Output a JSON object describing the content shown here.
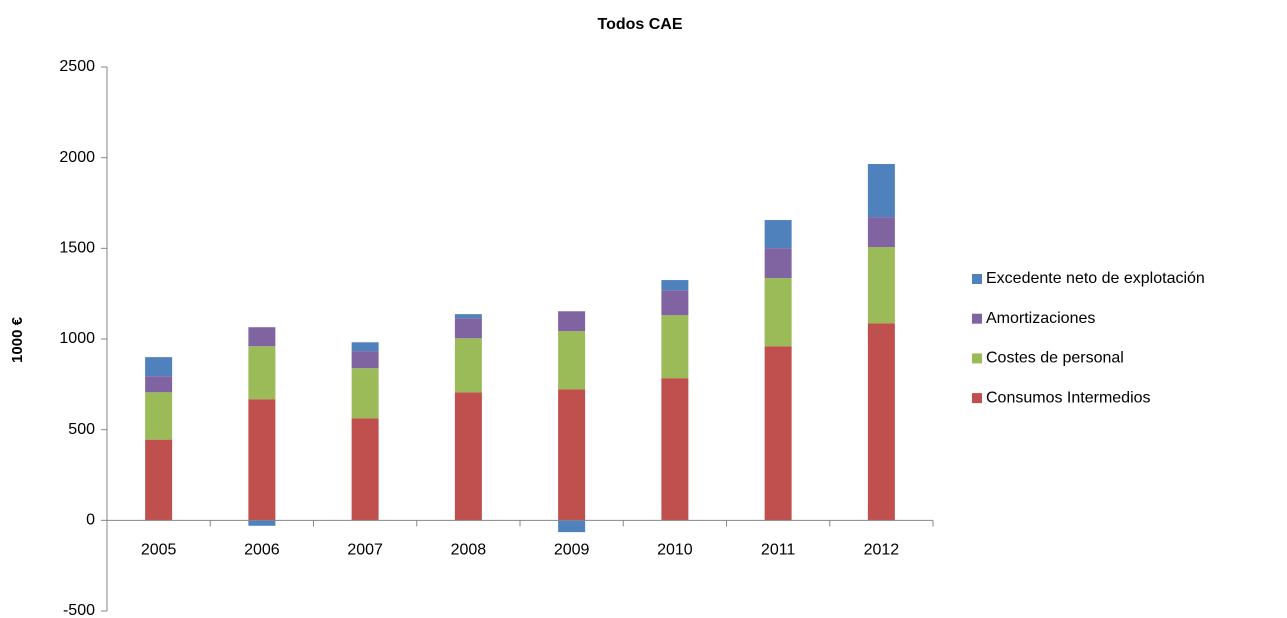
{
  "chart_data": {
    "type": "stacked_bar",
    "title": "Todos CAE",
    "y_label": "1000 €",
    "categories": [
      "2005",
      "2006",
      "2007",
      "2008",
      "2009",
      "2010",
      "2011",
      "2012"
    ],
    "series": [
      {
        "name": "Consumos Intermedios",
        "color": "#c0504d",
        "values": [
          445,
          668,
          563,
          706,
          723,
          784,
          960,
          1087
        ]
      },
      {
        "name": "Costes de personal",
        "color": "#9bbb59",
        "values": [
          261,
          292,
          276,
          298,
          320,
          347,
          376,
          420
        ]
      },
      {
        "name": "Amortizaciones",
        "color": "#8064a2",
        "values": [
          89,
          105,
          94,
          111,
          110,
          138,
          165,
          165
        ]
      },
      {
        "name": "Excedente neto de explotación",
        "color": "#4f81bd",
        "values": [
          105,
          -30,
          49,
          22,
          -65,
          56,
          155,
          293
        ]
      }
    ],
    "ylim": [
      -500,
      2500
    ],
    "yticks": [
      -500,
      0,
      500,
      1000,
      1500,
      2000,
      2500
    ],
    "legend": "right"
  }
}
